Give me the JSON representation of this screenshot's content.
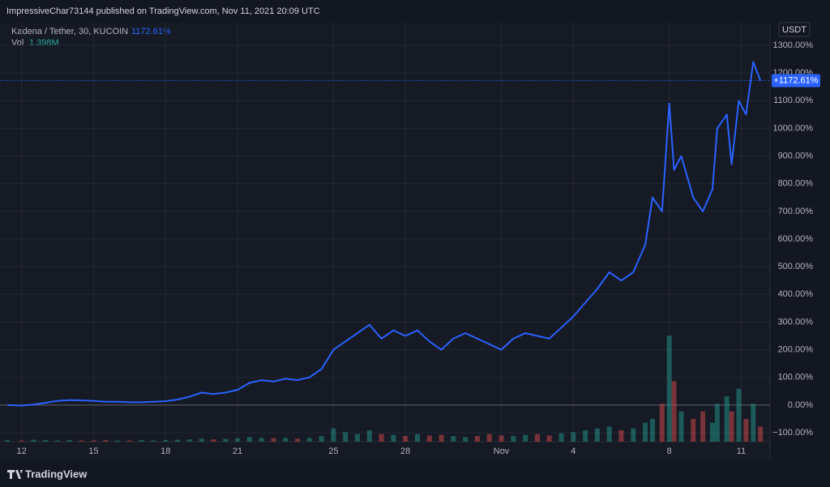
{
  "header": {
    "text": "ImpressiveChar73144 published on TradingView.com, Nov 11, 2021 20:09 UTC"
  },
  "footer": {
    "brand": "TradingView"
  },
  "chart_data": {
    "type": "line",
    "title": "Kadena / Tether, 30, KUCOIN",
    "legend_value": "1172.61%",
    "currency": "USDT",
    "grid": true,
    "xlim": [
      -0.9,
      31.2
    ],
    "xticks": [
      {
        "value": 0,
        "label": "12"
      },
      {
        "value": 3,
        "label": "15"
      },
      {
        "value": 6,
        "label": "18"
      },
      {
        "value": 9,
        "label": "21"
      },
      {
        "value": 13,
        "label": "25"
      },
      {
        "value": 16,
        "label": "28"
      },
      {
        "value": 20,
        "label": "Nov"
      },
      {
        "value": 23,
        "label": "4"
      },
      {
        "value": 27,
        "label": "8"
      },
      {
        "value": 30,
        "label": "11"
      }
    ],
    "ylim": [
      -100,
      1300
    ],
    "yticks": [
      {
        "value": -100,
        "label": "−100.00%"
      },
      {
        "value": 0,
        "label": "0.00%"
      },
      {
        "value": 100,
        "label": "100.00%"
      },
      {
        "value": 200,
        "label": "200.00%"
      },
      {
        "value": 300,
        "label": "300.00%"
      },
      {
        "value": 400,
        "label": "400.00%"
      },
      {
        "value": 500,
        "label": "500.00%"
      },
      {
        "value": 600,
        "label": "600.00%"
      },
      {
        "value": 700,
        "label": "700.00%"
      },
      {
        "value": 800,
        "label": "800.00%"
      },
      {
        "value": 900,
        "label": "900.00%"
      },
      {
        "value": 1000,
        "label": "1000.00%"
      },
      {
        "value": 1100,
        "label": "1100.00%"
      },
      {
        "value": 1200,
        "label": "1200.00%"
      },
      {
        "value": 1300,
        "label": "1300.00%"
      }
    ],
    "price_line": {
      "value": 1172.61,
      "label": "+1172.61%",
      "color": "#2962ff"
    },
    "series": [
      {
        "color": "#2962ff",
        "x": [
          -0.6,
          0,
          0.5,
          1,
          1.5,
          2,
          2.5,
          3,
          3.5,
          4,
          4.5,
          5,
          5.5,
          6,
          6.5,
          7,
          7.5,
          8,
          8.5,
          9,
          9.5,
          10,
          10.5,
          11,
          11.5,
          12,
          12.5,
          13,
          13.5,
          14,
          14.5,
          15,
          15.5,
          16,
          16.5,
          17,
          17.5,
          18,
          18.5,
          19,
          19.5,
          20,
          20.5,
          21,
          21.5,
          22,
          22.5,
          23,
          23.5,
          24,
          24.5,
          25,
          25.5,
          26,
          26.3,
          26.7,
          27,
          27.2,
          27.5,
          28,
          28.4,
          28.8,
          29,
          29.4,
          29.6,
          29.9,
          30.2,
          30.5,
          30.8
        ],
        "values": [
          0,
          -2,
          2,
          8,
          15,
          18,
          17,
          15,
          12,
          12,
          10,
          10,
          12,
          14,
          20,
          30,
          45,
          40,
          45,
          55,
          80,
          90,
          85,
          95,
          90,
          100,
          130,
          200,
          230,
          260,
          290,
          240,
          270,
          250,
          270,
          230,
          200,
          240,
          260,
          240,
          220,
          200,
          240,
          260,
          250,
          240,
          280,
          320,
          370,
          420,
          480,
          450,
          480,
          580,
          750,
          700,
          1090,
          850,
          900,
          750,
          700,
          780,
          1000,
          1050,
          870,
          1100,
          1050,
          1240,
          1172.61
        ]
      }
    ],
    "volume": {
      "label": "Vol",
      "last": "1.398M",
      "vlim": [
        0,
        30
      ],
      "up_color": "#26a69a",
      "down_color": "#ef5350",
      "values": [
        0.4,
        0.3,
        0.5,
        0.4,
        0.3,
        0.4,
        0.3,
        0.3,
        0.4,
        0.3,
        0.3,
        0.4,
        0.3,
        0.4,
        0.5,
        0.6,
        0.8,
        0.6,
        0.7,
        0.9,
        1.2,
        1,
        0.9,
        1,
        0.8,
        1,
        1.5,
        3.5,
        2.5,
        2,
        3,
        2,
        1.8,
        1.5,
        2,
        1.6,
        1.8,
        1.5,
        1.2,
        1.5,
        2,
        1.6,
        1.5,
        1.8,
        2,
        1.6,
        2.2,
        2.5,
        3,
        3.5,
        4,
        3,
        3.5,
        5,
        6,
        10,
        28,
        16,
        8,
        6,
        8,
        5,
        10,
        12,
        8,
        14,
        6,
        10,
        4
      ]
    }
  }
}
